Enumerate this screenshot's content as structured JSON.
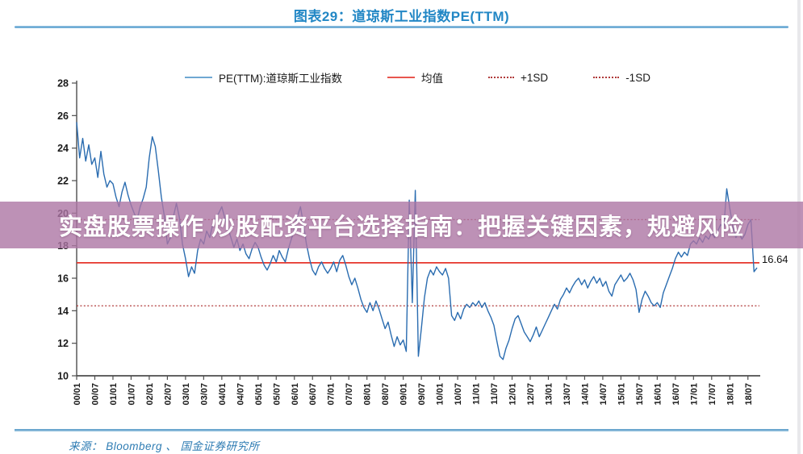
{
  "page": {
    "title": "图表29：道琼斯工业指数PE(TTM)",
    "watermark_text": "实盘股票操作 炒股配资平台选择指南：把握关键因素，规避风险",
    "source_label": "来源： Bloomberg 、 国金证券研究所"
  },
  "legend": {
    "items": [
      {
        "label": "PE(TTM):道琼斯工业指数",
        "style": "solid",
        "color": "#6fa8d2"
      },
      {
        "label": "均值",
        "style": "solid",
        "color": "#e8564e"
      },
      {
        "label": "+1SD",
        "style": "dotted",
        "color": "#b03a3a"
      },
      {
        "label": "-1SD",
        "style": "dotted",
        "color": "#b03a3a"
      }
    ]
  },
  "chart_data": {
    "type": "line",
    "title": "图表29：道琼斯工业指数PE(TTM)",
    "ylabel": "PE(TTM)",
    "ylim": [
      10,
      28
    ],
    "y_ticks": [
      10,
      12,
      14,
      16,
      18,
      20,
      22,
      24,
      26,
      28
    ],
    "grid": false,
    "legend_position": "top",
    "x_tick_labels": [
      "00/01",
      "00/07",
      "01/01",
      "01/07",
      "02/01",
      "02/07",
      "03/01",
      "03/07",
      "04/01",
      "04/07",
      "05/01",
      "05/07",
      "06/01",
      "06/07",
      "07/01",
      "07/07",
      "08/01",
      "08/07",
      "09/01",
      "09/07",
      "10/01",
      "10/07",
      "11/01",
      "11/07",
      "12/01",
      "12/07",
      "13/01",
      "13/07",
      "14/01",
      "14/07",
      "15/01",
      "15/07",
      "16/01",
      "16/07",
      "17/01",
      "17/07",
      "18/01",
      "18/07"
    ],
    "months_per_tick": 6,
    "series": [
      {
        "name": "PE(TTM):道琼斯工业指数",
        "color": "#2a6cb0",
        "start": "2000/01",
        "interval": "monthly",
        "values": [
          25.6,
          23.4,
          24.6,
          23.2,
          24.2,
          23.0,
          23.4,
          22.2,
          23.8,
          22.4,
          21.6,
          22.0,
          21.8,
          21.0,
          20.4,
          21.3,
          21.9,
          21.1,
          20.5,
          20.0,
          19.6,
          20.4,
          20.9,
          21.6,
          23.4,
          24.7,
          24.1,
          22.6,
          21.0,
          19.8,
          18.1,
          18.5,
          19.8,
          20.6,
          19.7,
          18.1,
          17.2,
          16.1,
          16.7,
          16.3,
          17.7,
          18.4,
          18.1,
          18.9,
          18.5,
          19.3,
          19.7,
          20.0,
          20.4,
          19.7,
          19.1,
          18.5,
          17.9,
          18.4,
          17.7,
          18.1,
          17.5,
          17.2,
          17.8,
          18.2,
          17.9,
          17.3,
          16.8,
          16.5,
          16.9,
          17.4,
          17.0,
          17.7,
          17.3,
          17.0,
          17.8,
          18.4,
          19.0,
          19.8,
          20.4,
          19.3,
          18.1,
          17.2,
          16.5,
          16.2,
          16.7,
          17.0,
          16.6,
          16.3,
          16.6,
          17.0,
          16.4,
          17.1,
          17.4,
          16.8,
          16.1,
          15.6,
          16.0,
          15.4,
          14.7,
          14.2,
          13.9,
          14.5,
          14.0,
          14.6,
          14.1,
          13.5,
          12.9,
          13.3,
          12.5,
          11.8,
          12.4,
          11.9,
          12.2,
          11.5,
          20.8,
          14.5,
          21.4,
          11.2,
          12.9,
          14.8,
          16.0,
          16.5,
          16.2,
          16.7,
          16.4,
          16.2,
          16.6,
          16.0,
          13.7,
          13.4,
          13.9,
          13.5,
          14.1,
          14.4,
          14.2,
          14.5,
          14.3,
          14.6,
          14.2,
          14.5,
          14.0,
          13.6,
          13.1,
          12.1,
          11.2,
          11.0,
          11.7,
          12.2,
          12.9,
          13.5,
          13.7,
          13.2,
          12.7,
          12.4,
          12.1,
          12.5,
          13.0,
          12.4,
          12.8,
          13.2,
          13.6,
          14.0,
          14.4,
          14.1,
          14.7,
          15.0,
          15.4,
          15.1,
          15.5,
          15.8,
          16.0,
          15.6,
          15.9,
          15.4,
          15.8,
          16.1,
          15.7,
          16.0,
          15.5,
          15.8,
          15.2,
          14.9,
          15.6,
          15.9,
          16.2,
          15.8,
          16.0,
          16.3,
          15.9,
          15.3,
          13.9,
          14.7,
          15.2,
          14.9,
          14.5,
          14.3,
          14.5,
          14.2,
          15.1,
          15.6,
          16.1,
          16.6,
          17.2,
          17.6,
          17.3,
          17.6,
          17.4,
          18.1,
          18.3,
          18.1,
          18.5,
          18.2,
          18.6,
          18.4,
          18.8,
          18.5,
          18.9,
          19.3,
          19.1,
          21.5,
          20.3,
          19.2,
          18.5,
          18.8,
          18.4,
          18.7,
          19.3,
          19.6,
          16.4,
          16.64
        ]
      }
    ],
    "reference_lines": [
      {
        "name": "均值",
        "value": 16.95,
        "style": "solid",
        "color": "#e6352b"
      },
      {
        "name": "+1SD",
        "value": 19.6,
        "style": "dotted",
        "color": "#b03a3a"
      },
      {
        "name": "-1SD",
        "value": 14.3,
        "style": "dotted",
        "color": "#b03a3a"
      }
    ],
    "last_value_label": "16.64"
  }
}
